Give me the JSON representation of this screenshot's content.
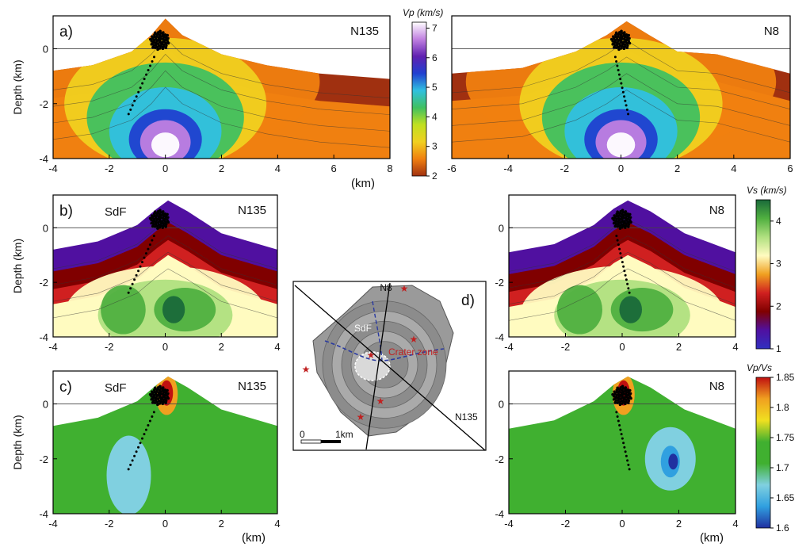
{
  "colorbars": {
    "vp": {
      "title": "Vp (km/s)",
      "ticks": [
        "7",
        "6",
        "5",
        "4",
        "3",
        "2"
      ],
      "colors": [
        "#ffffff",
        "#c080e0",
        "#6020b0",
        "#2040d0",
        "#30c0e0",
        "#40c060",
        "#c0e020",
        "#f0d020",
        "#f08010",
        "#a03010"
      ]
    },
    "vs": {
      "title": "Vs (km/s)",
      "ticks": [
        "4",
        "3",
        "2",
        "1"
      ],
      "colors": [
        "#1a6a3a",
        "#50b040",
        "#b0e080",
        "#fffbc0",
        "#f0a020",
        "#d02020",
        "#800000",
        "#5010a0",
        "#3030c0"
      ]
    },
    "vpvs": {
      "title": "Vp/Vs",
      "ticks": [
        "1.85",
        "1.8",
        "1.75",
        "1.7",
        "1.65",
        "1.6"
      ],
      "colors": [
        "#c01010",
        "#f0a020",
        "#f0e020",
        "#40b030",
        "#40b030",
        "#80d0e0",
        "#30a0e0",
        "#2030a0"
      ]
    }
  },
  "chart_data": [
    {
      "id": "a-left",
      "panel_label": "a)",
      "profile": "N135",
      "type": "heatmap",
      "ylabel": "Depth (km)",
      "xlabel": "(km)",
      "xlim": [
        -4,
        8
      ],
      "ylim": [
        -4,
        1.2
      ],
      "xticks": [
        "-4",
        "-2",
        "0",
        "2",
        "4",
        "6",
        "8"
      ],
      "yticks": [
        "0",
        "-2",
        "-4"
      ],
      "field": "vp",
      "topography": {
        "x": [
          -4,
          -2.6,
          -1.2,
          -0.5,
          0,
          0.6,
          2,
          3.6,
          5.5,
          8
        ],
        "y": [
          -0.8,
          -0.6,
          -0.1,
          0.5,
          1.1,
          0.5,
          -0.2,
          -0.6,
          -0.9,
          -1.1
        ]
      }
    },
    {
      "id": "a-right",
      "panel_label": "",
      "profile": "N8",
      "type": "heatmap",
      "ylabel": "",
      "xlabel": "",
      "xlim": [
        -6,
        6
      ],
      "ylim": [
        -4,
        1.2
      ],
      "xticks": [
        "-6",
        "-4",
        "-2",
        "0",
        "2",
        "4",
        "6"
      ],
      "yticks": [],
      "field": "vp",
      "topography": {
        "x": [
          -6,
          -3.5,
          -1.6,
          -0.5,
          0.2,
          1,
          2,
          3.4,
          6
        ],
        "y": [
          -0.9,
          -0.7,
          -0.1,
          0.5,
          1.0,
          0.5,
          -0.1,
          -0.2,
          -0.9
        ]
      }
    },
    {
      "id": "b-left",
      "panel_label": "b)",
      "profile": "N135",
      "annotation": "SdF",
      "type": "heatmap",
      "ylabel": "Depth (km)",
      "xlabel": "",
      "xlim": [
        -4,
        4
      ],
      "ylim": [
        -4,
        1.2
      ],
      "xticks": [
        "-4",
        "-2",
        "0",
        "2",
        "4"
      ],
      "yticks": [
        "0",
        "-2",
        "-4"
      ],
      "field": "vs",
      "topography": {
        "x": [
          -4,
          -2.4,
          -1,
          -0.3,
          0.1,
          0.8,
          2,
          4
        ],
        "y": [
          -0.8,
          -0.5,
          0.1,
          0.7,
          1.0,
          0.6,
          -0.2,
          -0.8
        ]
      }
    },
    {
      "id": "b-right",
      "panel_label": "",
      "profile": "N8",
      "type": "heatmap",
      "ylabel": "",
      "xlabel": "",
      "xlim": [
        -4,
        4
      ],
      "ylim": [
        -4,
        1.2
      ],
      "xticks": [
        "-4",
        "-2",
        "0",
        "2",
        "4"
      ],
      "yticks": [
        "0",
        "-2",
        "-4"
      ],
      "field": "vs",
      "topography": {
        "x": [
          -4,
          -2.4,
          -1,
          -0.3,
          0.2,
          1,
          2.2,
          4
        ],
        "y": [
          -0.9,
          -0.6,
          0.1,
          0.7,
          1.0,
          0.6,
          -0.2,
          -0.9
        ]
      }
    },
    {
      "id": "c-left",
      "panel_label": "c)",
      "profile": "N135",
      "annotation": "SdF",
      "type": "heatmap",
      "ylabel": "Depth (km)",
      "xlabel": "(km)",
      "xlim": [
        -4,
        4
      ],
      "ylim": [
        -4,
        1.2
      ],
      "xticks": [
        "-4",
        "-2",
        "0",
        "2",
        "4"
      ],
      "yticks": [
        "0",
        "-2",
        "-4"
      ],
      "field": "vpvs",
      "topography": {
        "x": [
          -4,
          -2.4,
          -1,
          -0.3,
          0.1,
          0.8,
          2,
          4
        ],
        "y": [
          -0.8,
          -0.5,
          0.1,
          0.7,
          1.0,
          0.6,
          -0.2,
          -0.8
        ]
      }
    },
    {
      "id": "c-right",
      "panel_label": "",
      "profile": "N8",
      "type": "heatmap",
      "ylabel": "",
      "xlabel": "(km)",
      "xlim": [
        -4,
        4
      ],
      "ylim": [
        -4,
        1.2
      ],
      "xticks": [
        "-4",
        "-2",
        "0",
        "2",
        "4"
      ],
      "yticks": [
        "0",
        "-2",
        "-4"
      ],
      "field": "vpvs",
      "topography": {
        "x": [
          -4,
          -2.4,
          -1,
          -0.3,
          0.2,
          1,
          2.2,
          4
        ],
        "y": [
          -0.9,
          -0.6,
          0.1,
          0.7,
          1.0,
          0.6,
          -0.2,
          -0.9
        ]
      }
    }
  ],
  "map": {
    "panel_label": "d)",
    "profile_a": "N8",
    "profile_b": "N135",
    "zone_label": "Crater zone",
    "annotation": "SdF",
    "scale_start": "0",
    "scale_end": "1km"
  }
}
